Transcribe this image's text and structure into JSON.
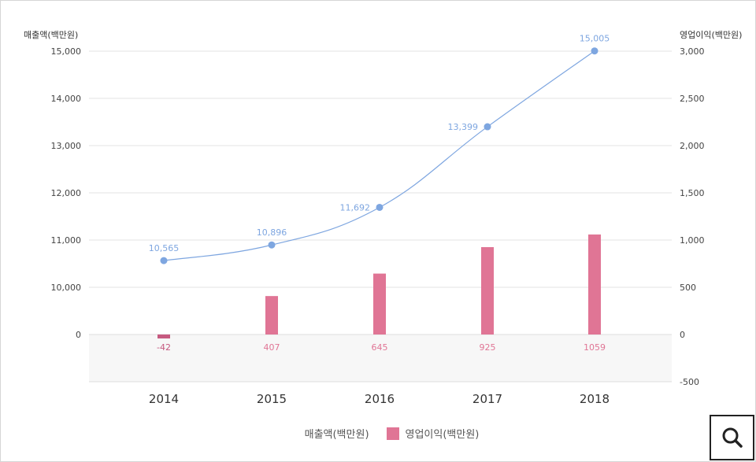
{
  "chart_data": {
    "type": "bar+line",
    "categories": [
      "2014",
      "2015",
      "2016",
      "2017",
      "2018"
    ],
    "line_series": {
      "name": "매출액(백만원)",
      "values": [
        10565,
        10896,
        11692,
        13399,
        15005
      ],
      "labels": [
        "10,565",
        "10,896",
        "11,692",
        "13,399",
        "15,005"
      ],
      "color": "#7ea6e0"
    },
    "bar_series": {
      "name": "영업이익(백만원)",
      "values": [
        -42,
        407,
        645,
        925,
        1059
      ],
      "labels": [
        "-42",
        "407",
        "645",
        "925",
        "1059"
      ],
      "color": "#e07595",
      "negative_color": "#c65a80"
    },
    "left_axis": {
      "label": "매출액(백만원)",
      "ticks": [
        {
          "value": 0,
          "label": "0"
        },
        {
          "value": 10000,
          "label": "10,000"
        },
        {
          "value": 11000,
          "label": "11,000"
        },
        {
          "value": 12000,
          "label": "12,000"
        },
        {
          "value": 13000,
          "label": "13,000"
        },
        {
          "value": 14000,
          "label": "14,000"
        },
        {
          "value": 15000,
          "label": "15,000"
        }
      ]
    },
    "right_axis": {
      "label": "영업이익(백만원)",
      "range": [
        -500,
        3000
      ],
      "ticks": [
        {
          "value": 3000,
          "label": "3,000"
        },
        {
          "value": 2500,
          "label": "2,500"
        },
        {
          "value": 2000,
          "label": "2,000"
        },
        {
          "value": 1500,
          "label": "1,500"
        },
        {
          "value": 1000,
          "label": "1,000"
        },
        {
          "value": 500,
          "label": "500"
        },
        {
          "value": 0,
          "label": "0"
        },
        {
          "value": -500,
          "label": "-500"
        }
      ]
    },
    "grid": true,
    "legend_position": "bottom-center"
  },
  "legend": {
    "line_label": "매출액(백만원)",
    "bar_label": "영업이익(백만원)"
  },
  "zoom_button": {
    "icon": "magnifier-icon"
  }
}
